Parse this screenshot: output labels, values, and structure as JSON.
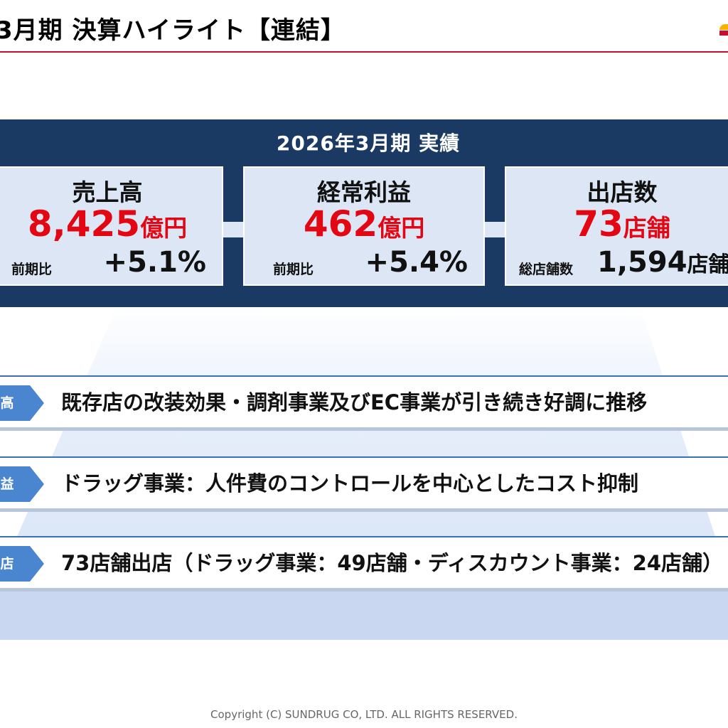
{
  "header": {
    "title": "3月期 決算ハイライト【連結】"
  },
  "results": {
    "title": "2026年3月期 実績",
    "cards": [
      {
        "label": "売上高",
        "value": "8,425",
        "value_unit": "億円",
        "sub_label": "前期比",
        "sub_value": "+5.1%",
        "sub_value_unit": ""
      },
      {
        "label": "経常利益",
        "value": "462",
        "value_unit": "億円",
        "sub_label": "前期比",
        "sub_value": "+5.4%",
        "sub_value_unit": ""
      },
      {
        "label": "出店数",
        "value": "73",
        "value_unit": "店舗",
        "sub_label": "総店舗数",
        "sub_value": "1,594",
        "sub_value_unit": "店舗"
      }
    ]
  },
  "highlights": [
    {
      "tag": "高",
      "text": "既存店の改装効果・調剤事業及びEC事業が引き続き好調に推移"
    },
    {
      "tag": "益",
      "text": "ドラッグ事業：人件費のコントロールを中心としたコスト抑制"
    },
    {
      "tag": "店",
      "text": "73店舗出店（ドラッグ事業：49店舗・ディスカウント事業：24店舗）"
    }
  ],
  "footer": {
    "copyright": "Copyright (C)  SUNDRUG CO, LTD. ALL RIGHTS RESERVED."
  },
  "colors": {
    "accent_red": "#e30613",
    "panel_navy": "#1b3a63",
    "tab_blue": "#4a86d0",
    "card_bg": "#dce6f4"
  }
}
